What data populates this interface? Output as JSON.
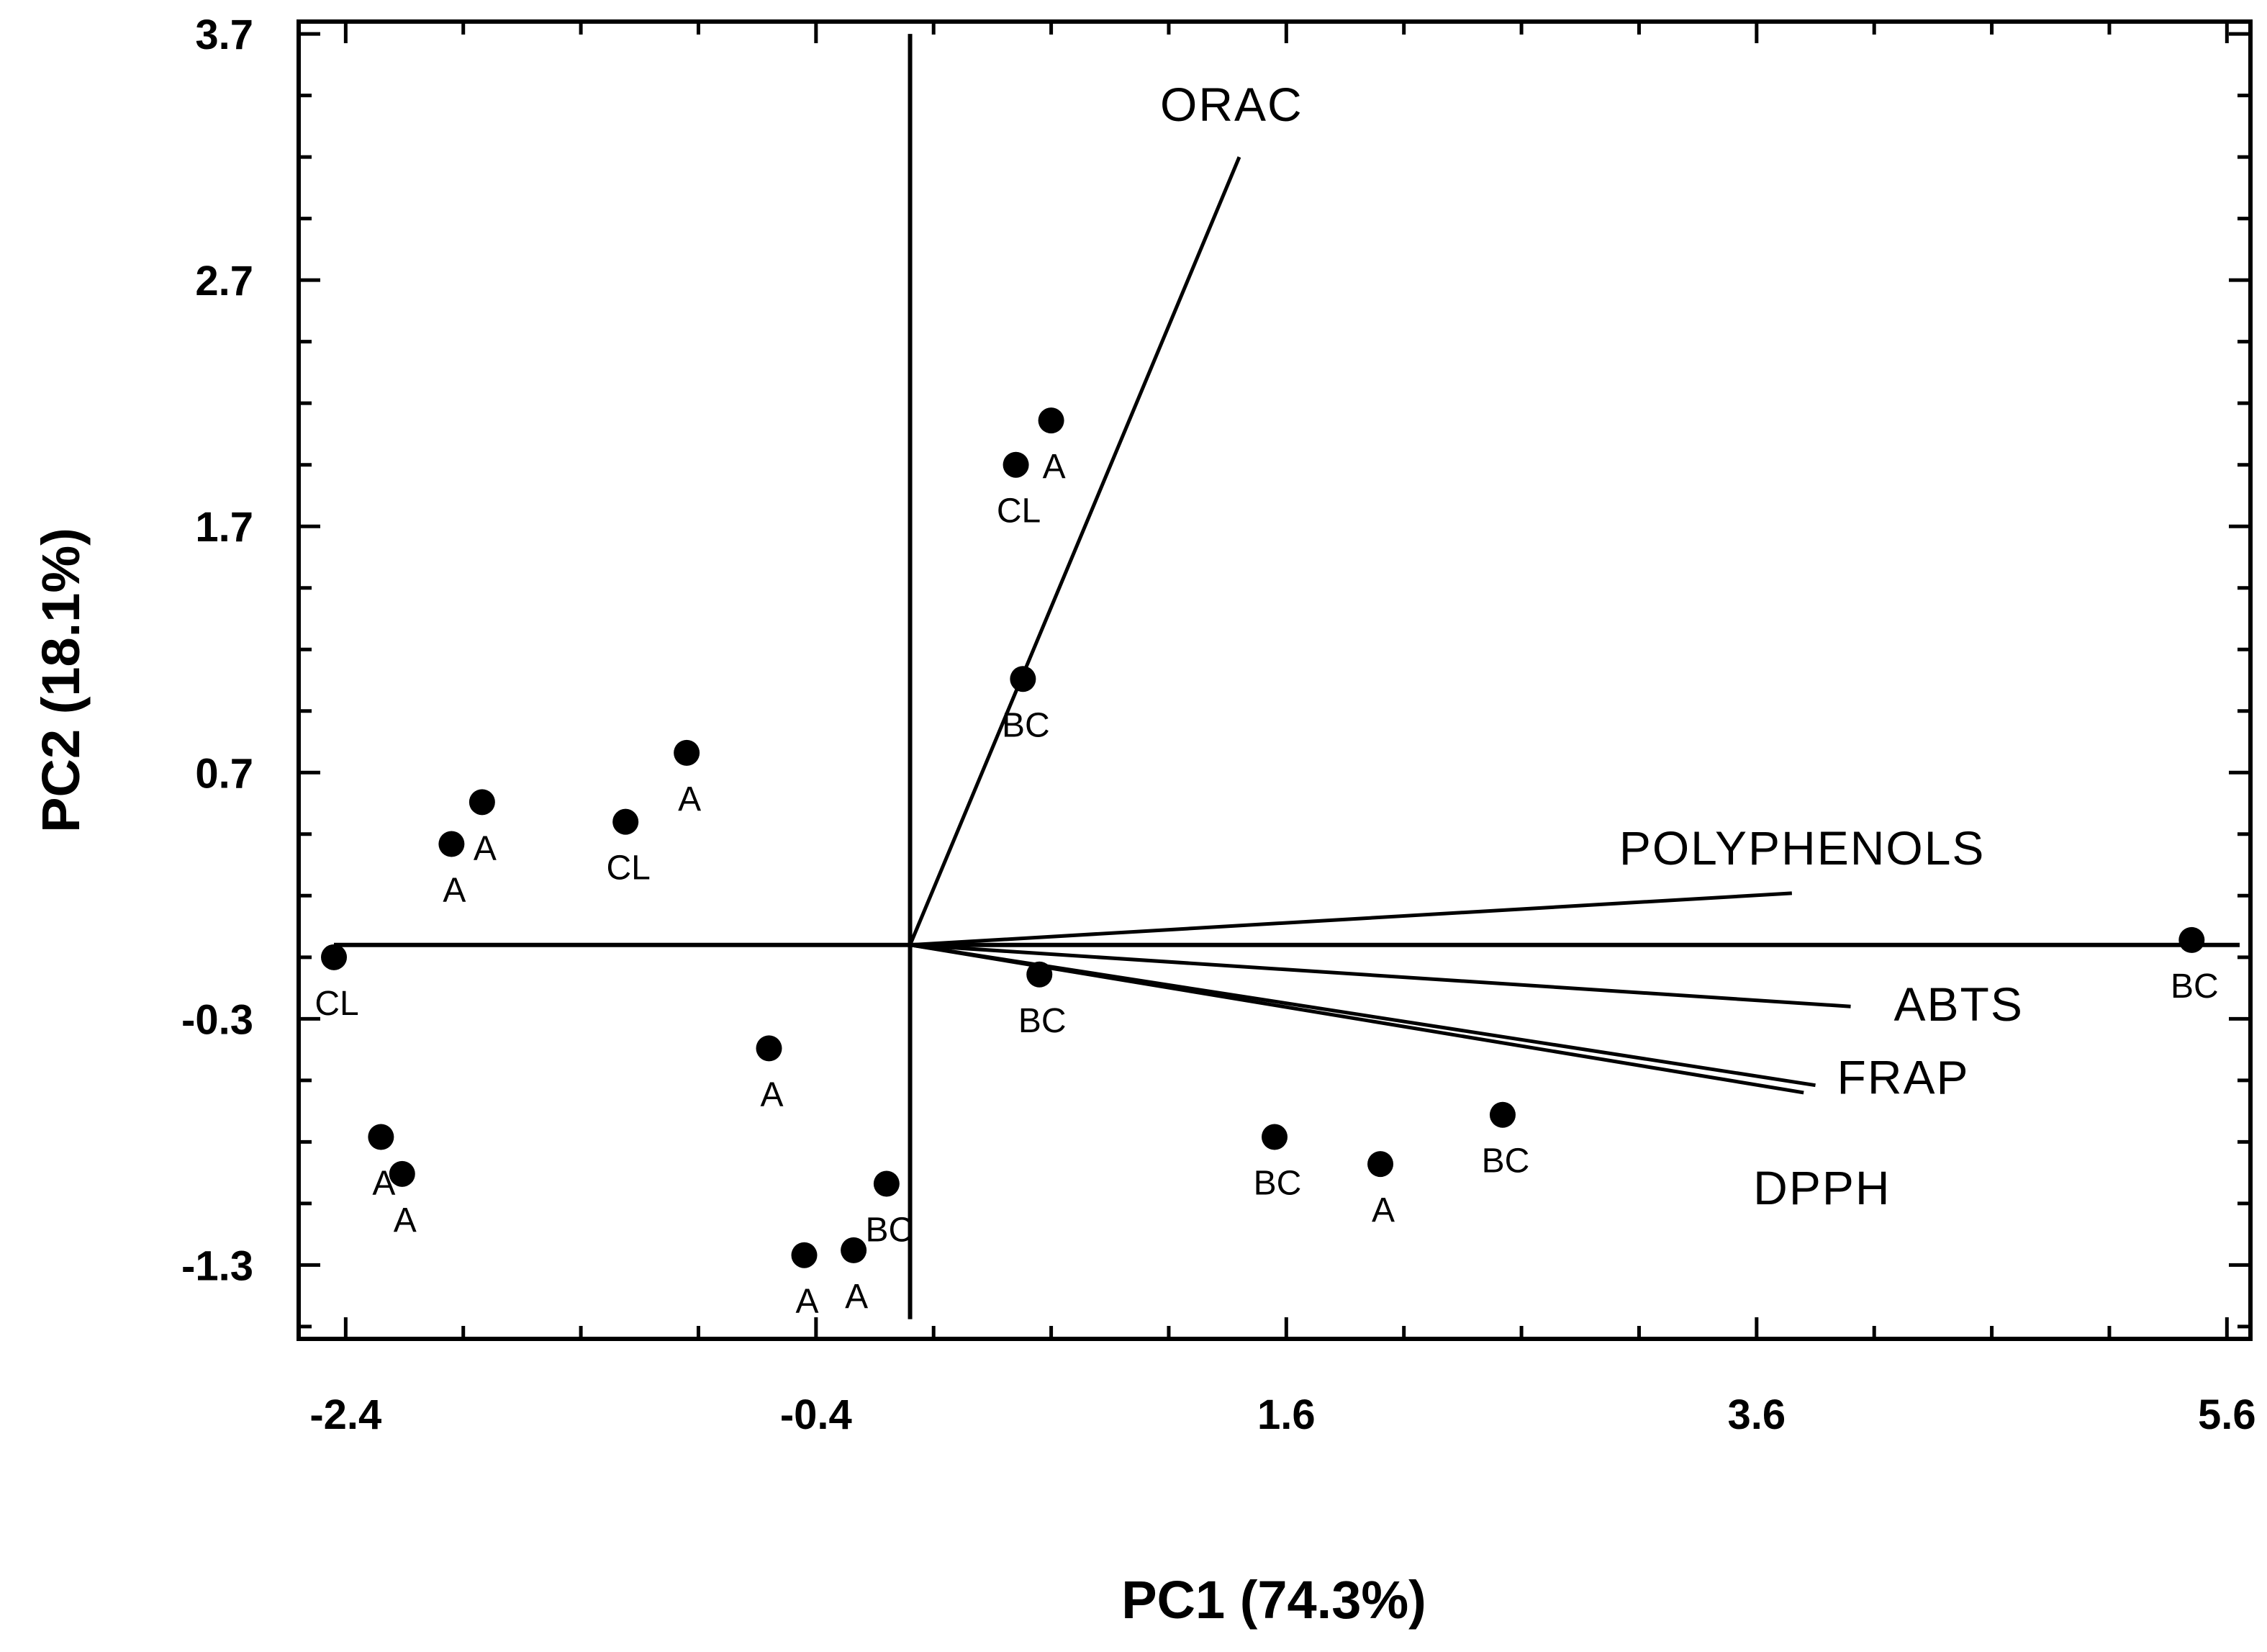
{
  "chart_data": {
    "type": "scatter",
    "subtype": "biplot",
    "xlabel": "PC1 (74.3%)",
    "ylabel": "PC2 (18.1%)",
    "xlim": [
      -2.6,
      5.7
    ],
    "ylim": [
      -1.6,
      3.75
    ],
    "xticks": [
      -2.4,
      -0.4,
      1.6,
      3.6,
      5.6
    ],
    "xtick_labels": [
      "-2.4",
      "-0.4",
      "1.6",
      "3.6",
      "5.6"
    ],
    "yticks": [
      3.7,
      2.7,
      1.7,
      0.7,
      -0.3,
      -1.3
    ],
    "ytick_labels": [
      "3.7",
      "2.7",
      "1.7",
      "0.7",
      "-0.3",
      "-1.3"
    ],
    "grid": false,
    "points": [
      {
        "label": "CL",
        "x": -2.45,
        "y": -0.05
      },
      {
        "label": "A",
        "x": -2.25,
        "y": -0.78
      },
      {
        "label": "A",
        "x": -2.16,
        "y": -0.93
      },
      {
        "label": "A",
        "x": -1.95,
        "y": 0.41
      },
      {
        "label": "A",
        "x": -1.82,
        "y": 0.58
      },
      {
        "label": "CL",
        "x": -1.21,
        "y": 0.5
      },
      {
        "label": "A",
        "x": -0.95,
        "y": 0.78
      },
      {
        "label": "A",
        "x": -0.6,
        "y": -0.42
      },
      {
        "label": "A",
        "x": -0.45,
        "y": -1.26
      },
      {
        "label": "A",
        "x": -0.24,
        "y": -1.24
      },
      {
        "label": "BC",
        "x": -0.1,
        "y": -0.97
      },
      {
        "label": "CL",
        "x": 0.45,
        "y": 1.95
      },
      {
        "label": "A",
        "x": 0.6,
        "y": 2.13
      },
      {
        "label": "BC",
        "x": 0.48,
        "y": 1.08
      },
      {
        "label": "BC",
        "x": 0.55,
        "y": -0.12
      },
      {
        "label": "BC",
        "x": 1.55,
        "y": -0.78
      },
      {
        "label": "A",
        "x": 2.0,
        "y": -0.89
      },
      {
        "label": "BC",
        "x": 2.52,
        "y": -0.69
      },
      {
        "label": "BC",
        "x": 5.45,
        "y": 0.02
      }
    ],
    "vectors": [
      {
        "label": "ORAC",
        "x": 1.4,
        "y": 3.2
      },
      {
        "label": "POLYPHENOLS",
        "x": 3.75,
        "y": 0.21
      },
      {
        "label": "ABTS",
        "x": 4.0,
        "y": -0.25
      },
      {
        "label": "FRAP",
        "x": 3.85,
        "y": -0.57
      },
      {
        "label": "DPPH",
        "x": 3.8,
        "y": -0.6
      }
    ]
  }
}
